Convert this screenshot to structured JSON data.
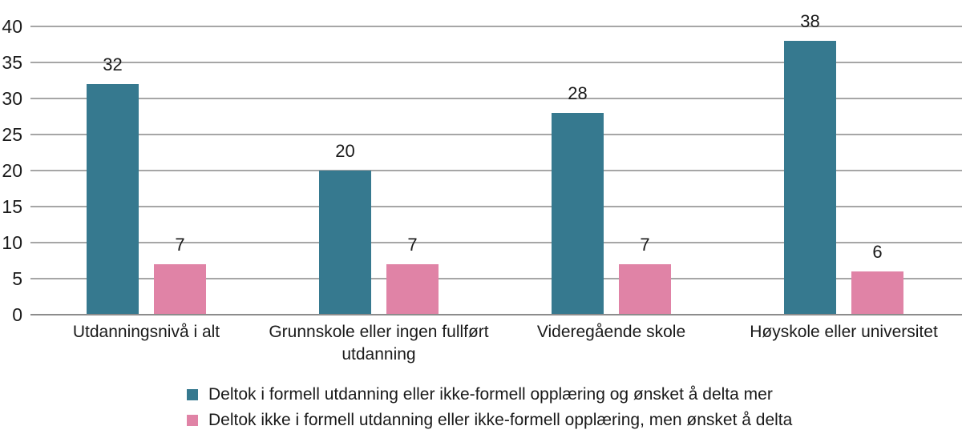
{
  "chart_data": {
    "type": "bar",
    "categories": [
      "Utdanningsnivå i alt",
      "Grunnskole eller ingen fullført utdanning",
      "Videregående skole",
      "Høyskole eller universitet"
    ],
    "series": [
      {
        "name": "Deltok i formell utdanning eller ikke-formell opplæring og ønsket å delta mer",
        "color": "#36798F",
        "values": [
          32,
          20,
          28,
          38
        ]
      },
      {
        "name": "Deltok ikke i formell utdanning eller ikke-formell opplæring, men ønsket å delta",
        "color": "#E083A6",
        "values": [
          7,
          7,
          7,
          6
        ]
      }
    ],
    "title": "",
    "xlabel": "",
    "ylabel": "",
    "ylim": [
      0,
      40
    ],
    "ytick_step": 5,
    "yticks": [
      0,
      5,
      10,
      15,
      20,
      25,
      30,
      35,
      40
    ],
    "grid": true,
    "data_labels": true,
    "legend_position": "bottom"
  },
  "style": {
    "grid_color": "#A6A6A6",
    "baseline_color": "#8C8C8C",
    "text_color": "#1A1A1A",
    "background": "#FFFFFF"
  }
}
